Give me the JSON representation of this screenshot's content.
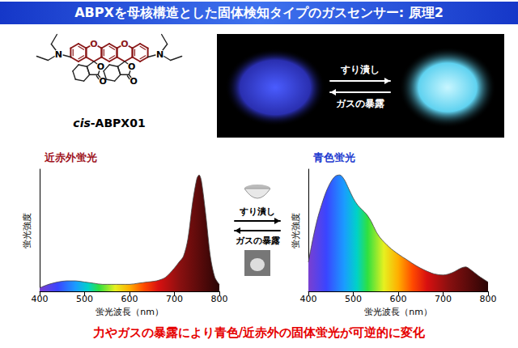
{
  "header": {
    "title": "ABPXを母核構造とした固体検知タイプのガスセンサー: 原理2"
  },
  "structure": {
    "name_prefix": "cis",
    "name_suffix": "-ABPX01",
    "atom_N": "N",
    "atom_O": "O"
  },
  "photo": {
    "forward": "すり潰し",
    "reverse": "ガスの暴露"
  },
  "process": {
    "forward": "すり潰し",
    "reverse": "ガスの暴露"
  },
  "chart_data": [
    {
      "type": "area",
      "title": "近赤外蛍光",
      "color": "#a0141e",
      "x_label": "蛍光波長（nm）",
      "y_label": "蛍光強度",
      "x": [
        400,
        420,
        440,
        460,
        480,
        500,
        520,
        540,
        560,
        580,
        600,
        620,
        640,
        660,
        680,
        700,
        710,
        720,
        730,
        740,
        750,
        755,
        760,
        770,
        780,
        790,
        800
      ],
      "values": [
        0.03,
        0.06,
        0.08,
        0.09,
        0.09,
        0.08,
        0.07,
        0.06,
        0.06,
        0.06,
        0.06,
        0.07,
        0.08,
        0.09,
        0.12,
        0.2,
        0.25,
        0.3,
        0.45,
        0.75,
        0.97,
        1.0,
        0.95,
        0.65,
        0.3,
        0.12,
        0.06
      ],
      "xlim": [
        400,
        800
      ],
      "xticks": [
        400,
        500,
        600,
        700,
        800
      ],
      "ylim": [
        0,
        1.05
      ],
      "tick_labels": "x",
      "grid": false
    },
    {
      "type": "area",
      "title": "青色蛍光",
      "color": "#1e3cd0",
      "x_label": "蛍光波長（nm）",
      "y_label": "蛍光強度",
      "x": [
        400,
        410,
        420,
        430,
        440,
        450,
        460,
        470,
        480,
        490,
        500,
        510,
        520,
        530,
        540,
        550,
        560,
        580,
        600,
        620,
        640,
        660,
        680,
        700,
        720,
        740,
        750,
        760,
        780,
        800
      ],
      "values": [
        0.25,
        0.45,
        0.62,
        0.75,
        0.86,
        0.94,
        0.99,
        1.0,
        0.96,
        0.88,
        0.8,
        0.74,
        0.7,
        0.66,
        0.6,
        0.52,
        0.46,
        0.38,
        0.32,
        0.27,
        0.22,
        0.18,
        0.15,
        0.14,
        0.16,
        0.2,
        0.21,
        0.19,
        0.13,
        0.08
      ],
      "xlim": [
        400,
        800
      ],
      "xticks": [
        400,
        500,
        600,
        700,
        800
      ],
      "ylim": [
        0,
        1.05
      ],
      "tick_labels": "x",
      "grid": false
    }
  ],
  "conclusion": "力やガスの暴露により青色/近赤外の固体蛍光が可逆的に変化"
}
